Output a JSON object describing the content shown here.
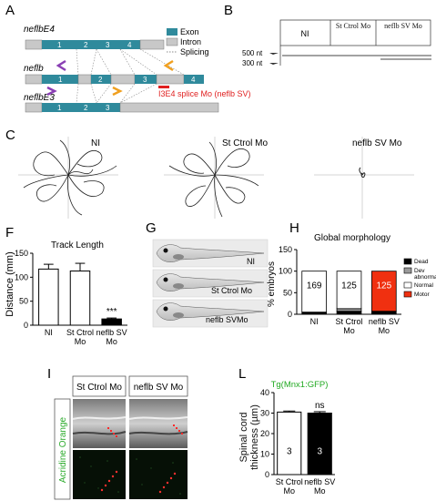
{
  "panels": {
    "A": "A",
    "B": "B",
    "C": "C",
    "F": "F",
    "G": "G",
    "H": "H",
    "I": "I",
    "L": "L"
  },
  "panel_a": {
    "transcripts": [
      {
        "name": "neflbE4",
        "exons": [
          "1",
          "2",
          "3",
          "4"
        ]
      },
      {
        "name": "neflb",
        "exons": [
          "1",
          "2",
          "3",
          "4"
        ]
      },
      {
        "name": "neflbE3",
        "exons": [
          "1",
          "2",
          "3"
        ]
      }
    ],
    "legend": {
      "exon": "Exon",
      "intron": "Intron",
      "splicing": "Splicing"
    },
    "splice_mo_label": "I3E4 splice Mo (neflb SV)",
    "colors": {
      "exon": "#2f8a9c",
      "intron": "#c8c8c8",
      "purple_primer": "#8a3fb4",
      "orange_primer": "#f0a020",
      "mo": "#e02020"
    }
  },
  "panel_b": {
    "lanes": [
      "NI",
      "St Ctrol Mo",
      "neflb SV Mo"
    ],
    "markers": [
      "500 nt",
      "300 nt"
    ]
  },
  "panel_c": {
    "groups": [
      "NI",
      "St Ctrol Mo",
      "neflb SV Mo"
    ]
  },
  "chart_data": [
    {
      "type": "bar",
      "panel": "F",
      "title": "Track Length",
      "ylabel": "Distance (mm)",
      "categories": [
        "NI",
        "St Ctrol Mo",
        "neflb SV Mo"
      ],
      "values": [
        117,
        113,
        13
      ],
      "errors": [
        10,
        16,
        2
      ],
      "fills": [
        "#ffffff",
        "#ffffff",
        "#000000"
      ],
      "ylim": [
        0,
        150
      ],
      "yticks": [
        "0",
        "50",
        "100",
        "150"
      ],
      "annotations": [
        "",
        "",
        "***"
      ]
    },
    {
      "type": "bar",
      "panel": "H",
      "title": "Global morphology",
      "ylabel": "% embryos",
      "categories": [
        "NI",
        "St Ctrol Mo",
        "neflb SV Mo"
      ],
      "stacked": true,
      "n_labels": [
        "169",
        "125",
        "125"
      ],
      "series": [
        {
          "name": "Dead",
          "color": "#000000",
          "values": [
            5,
            7,
            7
          ]
        },
        {
          "name": "Dev abnormalities",
          "color": "#9a9a9a",
          "values": [
            0,
            6,
            0
          ]
        },
        {
          "name": "Normal",
          "color": "#ffffff",
          "values": [
            95,
            87,
            0
          ]
        },
        {
          "name": "Motor",
          "color": "#f03010",
          "values": [
            0,
            0,
            93
          ]
        }
      ],
      "ylim": [
        0,
        150
      ],
      "yticks": [
        "0",
        "50",
        "100",
        "150"
      ]
    },
    {
      "type": "bar",
      "panel": "L",
      "title": "Tg(Mnx1:GFP)",
      "ylabel": "Spinal cord thickness (µm)",
      "categories": [
        "St Ctrol Mo",
        "neflb SV Mo"
      ],
      "values": [
        30.5,
        30
      ],
      "errors": [
        0.5,
        0.7
      ],
      "fills": [
        "#ffffff",
        "#000000"
      ],
      "n_labels": [
        "3",
        "3"
      ],
      "ylim": [
        0,
        40
      ],
      "yticks": [
        "0",
        "10",
        "20",
        "30",
        "40"
      ],
      "annotations": [
        "",
        "ns"
      ],
      "title_color": "#22aa22"
    }
  ],
  "panel_g": {
    "labels": [
      "NI",
      "St Ctrol Mo",
      "neflb SVMo"
    ]
  },
  "panel_i": {
    "columns": [
      "St Ctrol Mo",
      "neflb SV Mo"
    ],
    "row_label": "Acridine Orange",
    "row_label_color": "#2aaa2a"
  }
}
